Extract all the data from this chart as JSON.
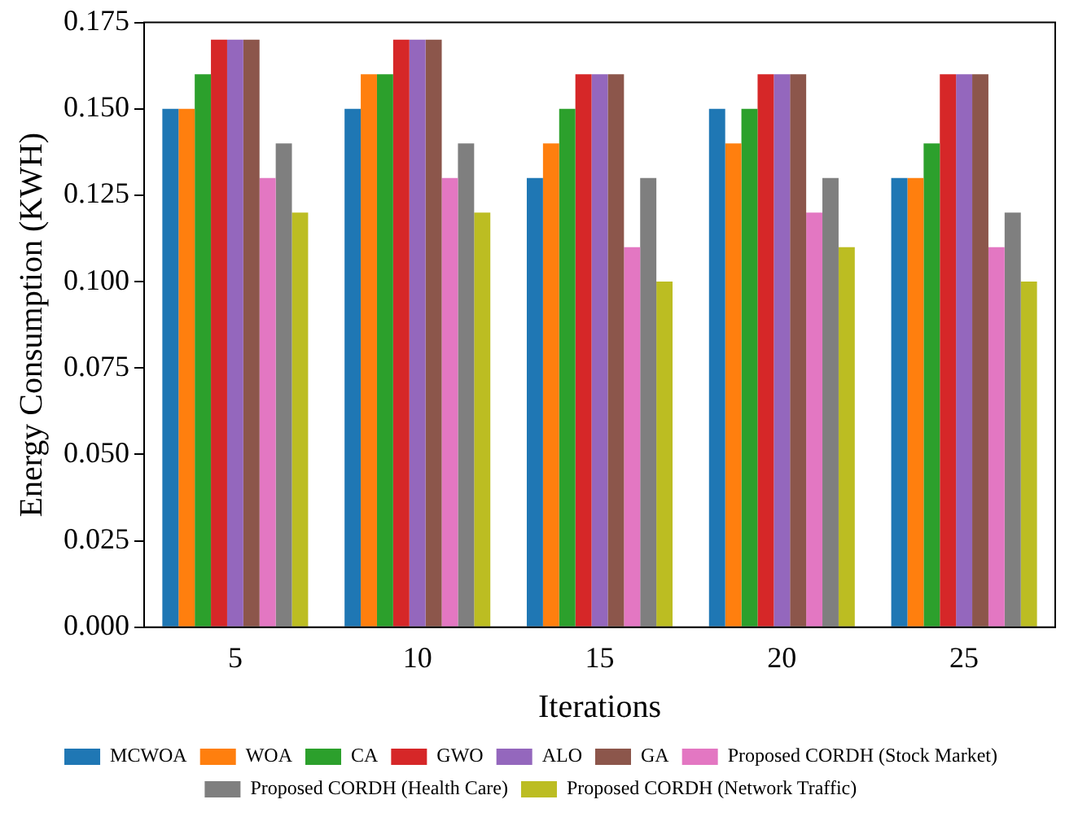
{
  "chart_data": {
    "type": "bar",
    "xlabel": "Iterations",
    "ylabel": "Energy Consumption (KWH)",
    "categories": [
      "5",
      "10",
      "15",
      "20",
      "25"
    ],
    "series": [
      {
        "name": "MCWOA",
        "color": "#1f77b4",
        "values": [
          0.15,
          0.15,
          0.13,
          0.15,
          0.13
        ]
      },
      {
        "name": "WOA",
        "color": "#ff7f0e",
        "values": [
          0.15,
          0.16,
          0.14,
          0.14,
          0.13
        ]
      },
      {
        "name": "CA",
        "color": "#2ca02c",
        "values": [
          0.16,
          0.16,
          0.15,
          0.15,
          0.14
        ]
      },
      {
        "name": "GWO",
        "color": "#d62728",
        "values": [
          0.17,
          0.17,
          0.16,
          0.16,
          0.16
        ]
      },
      {
        "name": "ALO",
        "color": "#9467bd",
        "values": [
          0.17,
          0.17,
          0.16,
          0.16,
          0.16
        ]
      },
      {
        "name": "GA",
        "color": "#8c564b",
        "values": [
          0.17,
          0.17,
          0.16,
          0.16,
          0.16
        ]
      },
      {
        "name": "Proposed CORDH (Stock Market)",
        "color": "#e377c2",
        "values": [
          0.13,
          0.13,
          0.11,
          0.12,
          0.11
        ]
      },
      {
        "name": "Proposed CORDH (Health Care)",
        "color": "#7f7f7f",
        "values": [
          0.14,
          0.14,
          0.13,
          0.13,
          0.12
        ]
      },
      {
        "name": "Proposed CORDH (Network Traffic)",
        "color": "#bcbd22",
        "values": [
          0.12,
          0.12,
          0.1,
          0.11,
          0.1
        ]
      }
    ],
    "ylim": [
      0,
      0.175
    ],
    "yticks": [
      {
        "value": 0,
        "label": "0.000"
      },
      {
        "value": 0.025,
        "label": "0.025"
      },
      {
        "value": 0.05,
        "label": "0.050"
      },
      {
        "value": 0.075,
        "label": "0.075"
      },
      {
        "value": 0.1,
        "label": "0.100"
      },
      {
        "value": 0.125,
        "label": "0.125"
      },
      {
        "value": 0.15,
        "label": "0.150"
      },
      {
        "value": 0.175,
        "label": "0.175"
      }
    ],
    "grid": false,
    "legend": "bottom"
  }
}
